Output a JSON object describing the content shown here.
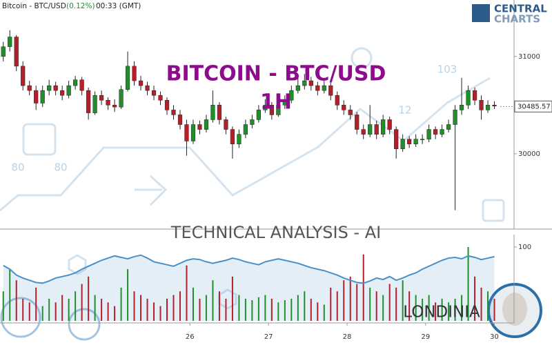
{
  "header": {
    "symbol": "Bitcoin - BTC/USD",
    "change": "(0.12%)",
    "time": "00:33 (GMT)"
  },
  "logo": {
    "line1": "CENTRAL",
    "line2": "CHARTS"
  },
  "title": "BITCOIN - BTC/USD",
  "timeframe": "1H",
  "subtitle": "TECHNICAL  ANALYSIS - AI",
  "author": "LONDINIA",
  "watermark_numbers": [
    80,
    80,
    103,
    12
  ],
  "chart_data": {
    "type": "candlestick",
    "up_color": "#1f8f2a",
    "down_color": "#b3202a",
    "indicator_color": "#4a8fc6",
    "x": [
      1,
      3,
      5,
      7,
      9,
      11,
      13,
      15,
      17,
      19,
      21,
      23,
      25,
      27,
      29,
      31,
      33,
      35,
      37,
      39,
      41,
      43,
      45,
      47,
      49,
      51,
      53,
      55,
      57,
      59,
      61,
      63,
      65,
      67,
      69,
      71,
      73,
      75,
      77,
      79,
      81,
      83,
      85,
      87,
      89,
      91,
      93,
      95,
      97,
      99,
      101,
      103,
      105,
      107,
      109,
      111,
      113,
      115,
      117,
      119,
      121,
      123,
      125,
      127,
      129,
      131,
      133,
      135,
      137,
      139,
      141,
      143,
      145,
      147,
      149,
      151
    ],
    "open": [
      31000,
      31100,
      31200,
      30900,
      30700,
      30650,
      30520,
      30650,
      30700,
      30650,
      30600,
      30700,
      30760,
      30650,
      30420,
      30600,
      30550,
      30500,
      30480,
      30660,
      30900,
      30750,
      30700,
      30650,
      30600,
      30550,
      30450,
      30400,
      30300,
      30130,
      30300,
      30250,
      30350,
      30500,
      30350,
      30250,
      30100,
      30200,
      30300,
      30350,
      30450,
      30500,
      30400,
      30500,
      30550,
      30650,
      30700,
      30750,
      30700,
      30650,
      30700,
      30600,
      30500,
      30450,
      30400,
      30250,
      30200,
      30300,
      30200,
      30350,
      30250,
      30050,
      30150,
      30100,
      30150,
      30150,
      30250,
      30200,
      30250,
      30300,
      30450,
      30500,
      30650,
      30550,
      30450,
      30500
    ],
    "high": [
      31150,
      31270,
      31220,
      30950,
      30750,
      30700,
      30700,
      30760,
      30740,
      30700,
      30750,
      30800,
      30790,
      30680,
      30640,
      30650,
      30580,
      30560,
      30700,
      31050,
      30950,
      30800,
      30740,
      30700,
      30640,
      30580,
      30500,
      30450,
      30350,
      30350,
      30340,
      30400,
      30650,
      30530,
      30380,
      30280,
      30250,
      30350,
      30400,
      30500,
      30560,
      30530,
      30550,
      30600,
      30700,
      30800,
      30820,
      30790,
      30740,
      30750,
      30730,
      30640,
      30550,
      30500,
      30430,
      30300,
      30500,
      30340,
      30400,
      30380,
      30280,
      30200,
      30180,
      30200,
      30200,
      30300,
      30280,
      30300,
      30350,
      30500,
      30780,
      30700,
      30680,
      30600,
      30550,
      30540
    ],
    "low": [
      30950,
      31050,
      30850,
      30650,
      30600,
      30450,
      30480,
      30600,
      30600,
      30550,
      30570,
      30660,
      30600,
      30350,
      30400,
      30500,
      30450,
      30430,
      30460,
      30640,
      30700,
      30650,
      30600,
      30550,
      30500,
      30400,
      30350,
      30250,
      29980,
      30100,
      30200,
      30220,
      30320,
      30300,
      30200,
      29950,
      30060,
      30160,
      30260,
      30320,
      30420,
      30350,
      30380,
      30460,
      30520,
      30620,
      30660,
      30650,
      30600,
      30620,
      30550,
      30450,
      30400,
      30350,
      30200,
      30150,
      30170,
      30150,
      30170,
      30200,
      29950,
      30020,
      30060,
      30070,
      30100,
      30120,
      30150,
      30170,
      30220,
      29420,
      30400,
      30460,
      30500,
      30350,
      30420,
      30460
    ],
    "close": [
      31100,
      31200,
      30900,
      30700,
      30650,
      30520,
      30650,
      30700,
      30650,
      30600,
      30700,
      30760,
      30650,
      30420,
      30600,
      30550,
      30500,
      30480,
      30660,
      30900,
      30750,
      30700,
      30650,
      30600,
      30550,
      30450,
      30400,
      30300,
      30130,
      30300,
      30250,
      30350,
      30500,
      30350,
      30250,
      30100,
      30200,
      30300,
      30350,
      30450,
      30500,
      30400,
      30500,
      30550,
      30650,
      30700,
      30750,
      30700,
      30650,
      30700,
      30600,
      30500,
      30450,
      30400,
      30250,
      30200,
      30300,
      30200,
      30350,
      30250,
      30050,
      30150,
      30100,
      30150,
      30150,
      30250,
      30200,
      30250,
      30300,
      30450,
      30500,
      30650,
      30550,
      30450,
      30500,
      30490
    ],
    "volume": [
      40,
      70,
      55,
      30,
      25,
      45,
      20,
      30,
      25,
      35,
      30,
      40,
      50,
      60,
      35,
      30,
      25,
      20,
      45,
      70,
      40,
      35,
      30,
      25,
      20,
      30,
      35,
      40,
      75,
      45,
      30,
      35,
      55,
      40,
      30,
      60,
      35,
      30,
      28,
      32,
      35,
      30,
      25,
      28,
      30,
      35,
      40,
      30,
      25,
      22,
      45,
      40,
      55,
      60,
      50,
      90,
      45,
      40,
      35,
      50,
      45,
      55,
      40,
      35,
      30,
      35,
      25,
      30,
      25,
      30,
      35,
      100,
      60,
      45,
      40,
      30
    ],
    "indicator": [
      75,
      70,
      62,
      58,
      55,
      52,
      51,
      54,
      58,
      60,
      62,
      65,
      70,
      74,
      78,
      82,
      85,
      88,
      86,
      84,
      87,
      89,
      85,
      80,
      78,
      76,
      74,
      78,
      82,
      84,
      83,
      80,
      78,
      80,
      82,
      85,
      83,
      80,
      78,
      76,
      80,
      82,
      84,
      82,
      80,
      78,
      75,
      72,
      70,
      68,
      65,
      62,
      58,
      55,
      52,
      51,
      54,
      58,
      56,
      60,
      55,
      58,
      62,
      65,
      70,
      74,
      78,
      82,
      85,
      86,
      84,
      88,
      86,
      83,
      85,
      87
    ],
    "last_price": 30485.57,
    "xlim": [
      0,
      157
    ],
    "xticks": [
      {
        "value": 58,
        "label": "26"
      },
      {
        "value": 82,
        "label": "27"
      },
      {
        "value": 106,
        "label": "28"
      },
      {
        "value": 130,
        "label": "29"
      },
      {
        "value": 151,
        "label": "30"
      }
    ],
    "ylim": [
      29240,
      31580
    ],
    "yticks": [
      30000,
      31000
    ],
    "y2lim": [
      0,
      100
    ],
    "y2ticks": [
      100
    ]
  }
}
